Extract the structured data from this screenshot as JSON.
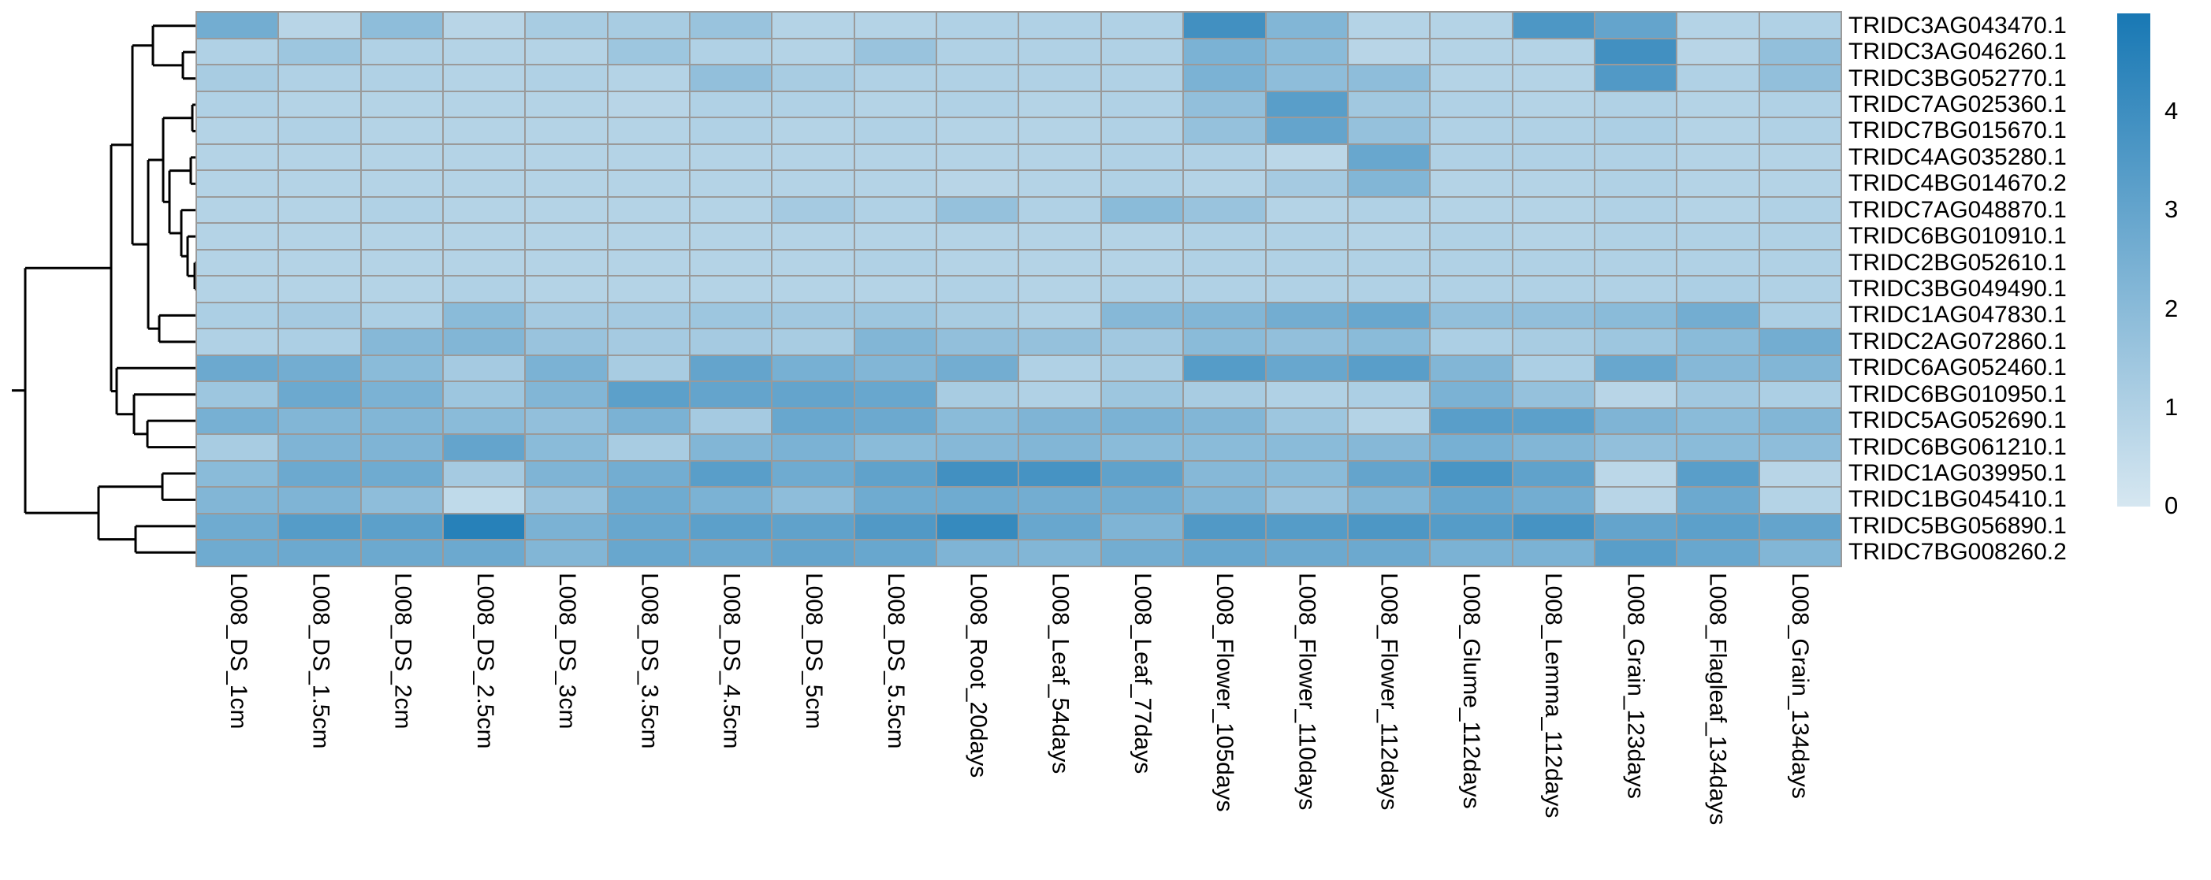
{
  "figure": {
    "background": "#ffffff",
    "dendrogram_line_color": "#000000",
    "cell_border_color": "#9a9a9a"
  },
  "chart_data": {
    "type": "heatmap",
    "title": "",
    "xlabel": "",
    "ylabel": "",
    "legend_position": "right",
    "grid": true,
    "rows": [
      "TRIDC3AG043470.1",
      "TRIDC3AG046260.1",
      "TRIDC3BG052770.1",
      "TRIDC7AG025360.1",
      "TRIDC7BG015670.1",
      "TRIDC4AG035280.1",
      "TRIDC4BG014670.2",
      "TRIDC7AG048870.1",
      "TRIDC6BG010910.1",
      "TRIDC2BG052610.1",
      "TRIDC3BG049490.1",
      "TRIDC1AG047830.1",
      "TRIDC2AG072860.1",
      "TRIDC6AG052460.1",
      "TRIDC6BG010950.1",
      "TRIDC5AG052690.1",
      "TRIDC6BG061210.1",
      "TRIDC1AG039950.1",
      "TRIDC1BG045410.1",
      "TRIDC5BG056890.1",
      "TRIDC7BG008260.2"
    ],
    "columns": [
      "L008_DS_1cm",
      "L008_DS_1.5cm",
      "L008_DS_2cm",
      "L008_DS_2.5cm",
      "L008_DS_3cm",
      "L008_DS_3.5cm",
      "L008_DS_4.5cm",
      "L008_DS_5cm",
      "L008_DS_5.5cm",
      "L008_Root_20days",
      "L008_Leaf_54days",
      "L008_Leaf_77days",
      "L008_Flower_105days",
      "L008_Flower_110days",
      "L008_Flower_112days",
      "L008_Glume_112days",
      "L008_Lemma_112days",
      "L008_Grain_123days",
      "L008_Flagleaf_134days",
      "L008_Grain_134days"
    ],
    "values": [
      [
        2.6,
        0.8,
        1.9,
        0.8,
        1.2,
        1.2,
        1.6,
        0.9,
        0.9,
        1.0,
        1.0,
        1.0,
        3.9,
        2.2,
        0.9,
        0.9,
        3.6,
        3.0,
        0.9,
        1.0
      ],
      [
        1.0,
        1.5,
        1.0,
        0.9,
        0.9,
        1.5,
        1.0,
        0.9,
        1.6,
        1.0,
        1.0,
        1.0,
        2.4,
        2.0,
        0.8,
        0.9,
        0.9,
        3.9,
        0.8,
        1.8
      ],
      [
        1.2,
        1.0,
        1.0,
        0.9,
        1.0,
        0.9,
        1.8,
        1.2,
        1.0,
        1.0,
        1.0,
        1.0,
        2.4,
        1.9,
        1.9,
        0.9,
        0.9,
        3.5,
        1.0,
        1.8
      ],
      [
        1.0,
        0.9,
        0.9,
        0.9,
        0.9,
        0.8,
        1.0,
        1.0,
        0.9,
        1.0,
        0.9,
        1.0,
        1.8,
        3.3,
        1.4,
        1.0,
        0.9,
        1.0,
        0.9,
        1.0
      ],
      [
        0.9,
        1.0,
        0.9,
        0.9,
        0.9,
        0.9,
        1.0,
        0.9,
        1.0,
        0.9,
        0.9,
        1.0,
        1.7,
        3.0,
        1.7,
        1.0,
        1.0,
        1.1,
        0.9,
        1.0
      ],
      [
        0.9,
        0.9,
        0.9,
        0.9,
        0.9,
        0.9,
        0.9,
        0.9,
        0.9,
        0.9,
        0.9,
        1.0,
        1.0,
        0.7,
        2.9,
        1.0,
        1.0,
        1.0,
        0.9,
        0.9
      ],
      [
        0.9,
        0.9,
        0.9,
        0.9,
        0.9,
        0.9,
        0.9,
        0.9,
        0.9,
        0.8,
        0.9,
        1.0,
        0.9,
        1.3,
        2.2,
        0.9,
        0.9,
        1.0,
        0.9,
        0.9
      ],
      [
        0.9,
        0.9,
        1.0,
        0.9,
        0.9,
        0.9,
        0.9,
        1.3,
        1.0,
        1.7,
        1.0,
        2.0,
        1.6,
        0.9,
        1.0,
        0.9,
        0.9,
        1.0,
        0.9,
        1.0
      ],
      [
        0.9,
        0.9,
        0.9,
        0.9,
        0.9,
        0.9,
        0.9,
        0.9,
        0.9,
        0.9,
        0.9,
        0.9,
        1.0,
        1.0,
        0.9,
        1.0,
        0.9,
        1.0,
        1.0,
        1.0
      ],
      [
        0.9,
        0.9,
        0.9,
        0.9,
        0.9,
        0.9,
        0.9,
        0.9,
        1.0,
        0.9,
        0.9,
        0.9,
        1.0,
        1.0,
        1.0,
        1.0,
        1.0,
        1.0,
        1.0,
        1.0
      ],
      [
        0.9,
        0.9,
        0.9,
        1.0,
        0.9,
        0.9,
        0.9,
        0.9,
        0.9,
        1.0,
        0.9,
        1.0,
        1.0,
        1.0,
        1.0,
        1.0,
        1.0,
        1.0,
        1.1,
        1.0
      ],
      [
        1.1,
        1.3,
        1.1,
        2.0,
        1.3,
        1.3,
        1.5,
        1.4,
        1.5,
        1.2,
        1.0,
        2.1,
        2.2,
        2.6,
        2.9,
        1.8,
        1.8,
        2.0,
        2.6,
        1.1
      ],
      [
        1.0,
        1.1,
        2.1,
        2.2,
        1.6,
        1.3,
        1.3,
        1.2,
        2.2,
        1.8,
        1.7,
        1.4,
        2.0,
        1.8,
        2.0,
        1.1,
        1.2,
        1.5,
        2.0,
        2.6
      ],
      [
        2.8,
        2.6,
        2.0,
        1.3,
        2.4,
        1.2,
        3.0,
        2.5,
        2.2,
        2.6,
        1.0,
        1.2,
        3.4,
        2.9,
        3.3,
        2.2,
        1.1,
        2.9,
        2.1,
        2.2
      ],
      [
        1.5,
        2.8,
        2.4,
        1.5,
        2.2,
        3.2,
        3.0,
        3.0,
        2.9,
        1.2,
        1.0,
        1.5,
        1.2,
        1.0,
        1.1,
        2.4,
        1.7,
        0.8,
        1.4,
        1.1
      ],
      [
        2.5,
        2.2,
        2.2,
        2.0,
        1.8,
        2.4,
        1.3,
        2.9,
        2.8,
        2.0,
        2.3,
        2.4,
        2.2,
        1.5,
        0.9,
        3.3,
        3.2,
        2.3,
        2.0,
        2.2
      ],
      [
        1.2,
        2.3,
        2.3,
        3.0,
        2.0,
        1.2,
        2.2,
        2.4,
        2.0,
        2.1,
        2.2,
        2.0,
        2.0,
        2.0,
        2.1,
        2.5,
        2.2,
        1.8,
        2.0,
        1.9
      ],
      [
        2.0,
        2.8,
        2.7,
        1.3,
        2.3,
        2.6,
        3.3,
        2.7,
        3.1,
        3.9,
        3.8,
        3.1,
        2.1,
        2.0,
        3.0,
        3.7,
        3.1,
        0.7,
        3.3,
        0.8
      ],
      [
        2.2,
        2.3,
        1.9,
        0.6,
        1.6,
        2.7,
        2.4,
        1.9,
        2.7,
        2.7,
        2.6,
        2.6,
        2.2,
        1.6,
        2.2,
        2.9,
        2.6,
        0.8,
        2.8,
        0.9
      ],
      [
        2.7,
        3.4,
        3.2,
        4.6,
        2.4,
        2.9,
        3.2,
        3.1,
        3.5,
        4.2,
        2.9,
        2.3,
        3.5,
        3.4,
        3.6,
        3.4,
        3.8,
        3.0,
        3.2,
        3.0
      ],
      [
        2.7,
        2.8,
        2.8,
        2.8,
        2.2,
        2.9,
        2.8,
        3.0,
        2.9,
        2.3,
        2.2,
        2.6,
        2.9,
        2.8,
        2.8,
        2.4,
        2.4,
        3.3,
        2.9,
        2.2
      ]
    ],
    "value_range": [
      0,
      5
    ],
    "colormap": {
      "low": "#d6e7f1",
      "high": "#1878b4"
    },
    "colorbar": {
      "ticks": [
        "4",
        "3",
        "2",
        "1",
        "0"
      ],
      "tick_values": [
        4,
        3,
        2,
        1,
        0
      ]
    },
    "row_dendrogram": {
      "d": 218,
      "children": [
        {
          "d": 109,
          "children": [
            {
              "d": 82,
              "children": [
                {
                  "d": 56,
                  "children": [
                    {
                      "leaf": 0
                    },
                    {
                      "d": 18,
                      "children": [
                        {
                          "leaf": 1
                        },
                        {
                          "leaf": 2
                        }
                      ]
                    }
                  ]
                },
                {
                  "d": 62,
                  "children": [
                    {
                      "d": 43,
                      "children": [
                        {
                          "d": 6,
                          "children": [
                            {
                              "leaf": 3
                            },
                            {
                              "leaf": 4
                            }
                          ]
                        },
                        {
                          "d": 35,
                          "children": [
                            {
                              "d": 8,
                              "children": [
                                {
                                  "leaf": 5
                                },
                                {
                                  "leaf": 6
                                }
                              ]
                            },
                            {
                              "d": 20,
                              "children": [
                                {
                                  "leaf": 7
                                },
                                {
                                  "d": 12,
                                  "children": [
                                    {
                                      "leaf": 8
                                    },
                                    {
                                      "d": 3,
                                      "children": [
                                        {
                                          "leaf": 9
                                        },
                                        {
                                          "leaf": 10
                                        }
                                      ]
                                    }
                                  ]
                                }
                              ]
                            }
                          ]
                        }
                      ]
                    },
                    {
                      "d": 48,
                      "children": [
                        {
                          "leaf": 11
                        },
                        {
                          "leaf": 12
                        }
                      ]
                    }
                  ]
                }
              ]
            },
            {
              "d": 102,
              "children": [
                {
                  "leaf": 13
                },
                {
                  "d": 80,
                  "children": [
                    {
                      "leaf": 14
                    },
                    {
                      "d": 63,
                      "children": [
                        {
                          "leaf": 15
                        },
                        {
                          "leaf": 16
                        }
                      ]
                    }
                  ]
                }
              ]
            }
          ]
        },
        {
          "d": 125,
          "children": [
            {
              "d": 44,
              "children": [
                {
                  "leaf": 17
                },
                {
                  "leaf": 18
                }
              ]
            },
            {
              "d": 78,
              "children": [
                {
                  "leaf": 19
                },
                {
                  "leaf": 20
                }
              ]
            }
          ]
        }
      ]
    }
  }
}
